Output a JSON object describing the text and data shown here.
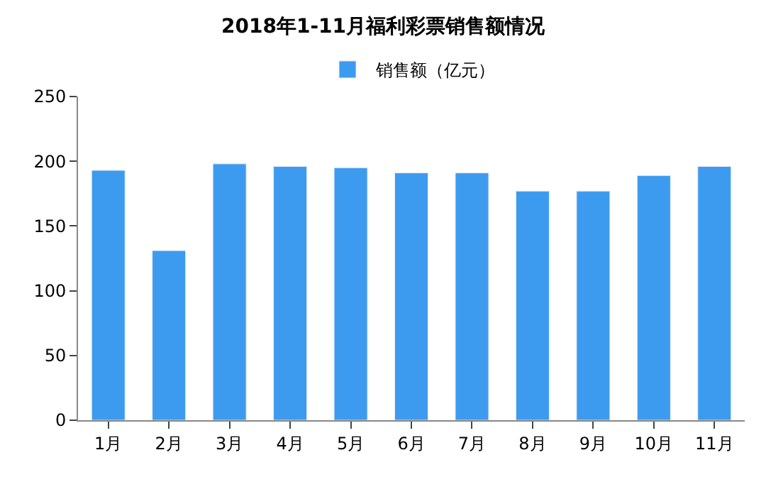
{
  "chart_data": {
    "type": "bar",
    "title": "2018年1-11月福利彩票销售额情况",
    "categories": [
      "1月",
      "2月",
      "3月",
      "4月",
      "5月",
      "6月",
      "7月",
      "8月",
      "9月",
      "10月",
      "11月"
    ],
    "series": [
      {
        "name": "销售额（亿元）",
        "color": "#3d9bef",
        "values": [
          193,
          131,
          198,
          196,
          195,
          191,
          191,
          177,
          177,
          189,
          196
        ]
      }
    ],
    "ylim": [
      0,
      250
    ],
    "yticks": [
      0,
      50,
      100,
      150,
      200,
      250
    ],
    "legend": "top"
  }
}
